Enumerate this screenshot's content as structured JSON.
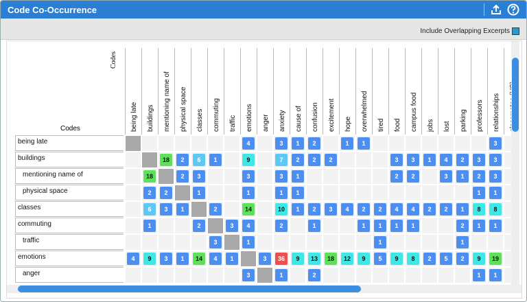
{
  "header": {
    "title": "Code Co-Occurrence"
  },
  "toolbar": {
    "overlap_label": "Include Overlapping Excerpts",
    "overlap_checked": true
  },
  "table": {
    "column_axis_label": "Codes",
    "row_axis_label": "Codes",
    "columns": [
      "being late",
      "buildings",
      "mentioning name of",
      "physical space",
      "classes",
      "commuting",
      "traffic",
      "emotions",
      "anger",
      "anxiety",
      "cause of",
      "confusion",
      "excitement",
      "hope",
      "overwhelmed",
      "tired",
      "food",
      "campus food",
      "jobs",
      "lost",
      "parking",
      "professors",
      "relationships",
      "classmates (HS)"
    ],
    "rows": [
      {
        "label": "being late",
        "child": false,
        "cells": [
          null,
          null,
          null,
          null,
          null,
          null,
          null,
          4,
          null,
          3,
          1,
          2,
          null,
          1,
          1,
          null,
          null,
          null,
          null,
          null,
          null,
          null,
          3,
          null
        ]
      },
      {
        "label": "buildings",
        "child": false,
        "cells": [
          null,
          null,
          18,
          2,
          6,
          1,
          null,
          9,
          null,
          7,
          2,
          2,
          2,
          null,
          null,
          null,
          3,
          3,
          1,
          4,
          2,
          3,
          3,
          null
        ]
      },
      {
        "label": "mentioning name of",
        "child": true,
        "cells": [
          null,
          18,
          null,
          2,
          3,
          null,
          null,
          3,
          null,
          3,
          1,
          null,
          null,
          null,
          null,
          null,
          2,
          2,
          null,
          3,
          1,
          2,
          3,
          null
        ]
      },
      {
        "label": "physical space",
        "child": true,
        "cells": [
          null,
          2,
          2,
          null,
          1,
          null,
          null,
          1,
          null,
          1,
          1,
          null,
          null,
          null,
          null,
          null,
          null,
          null,
          null,
          null,
          null,
          1,
          1,
          null
        ]
      },
      {
        "label": "classes",
        "child": false,
        "cells": [
          null,
          6,
          3,
          1,
          null,
          2,
          null,
          14,
          null,
          10,
          1,
          2,
          3,
          4,
          2,
          2,
          4,
          4,
          2,
          2,
          1,
          8,
          8,
          null
        ]
      },
      {
        "label": "commuting",
        "child": false,
        "cells": [
          null,
          1,
          null,
          null,
          2,
          null,
          3,
          4,
          null,
          2,
          null,
          1,
          null,
          null,
          1,
          1,
          1,
          1,
          null,
          null,
          2,
          1,
          1,
          null
        ]
      },
      {
        "label": "traffic",
        "child": true,
        "cells": [
          null,
          null,
          null,
          null,
          null,
          3,
          null,
          1,
          null,
          null,
          null,
          null,
          null,
          null,
          null,
          1,
          null,
          null,
          null,
          null,
          1,
          null,
          null,
          null
        ]
      },
      {
        "label": "emotions",
        "child": false,
        "cells": [
          4,
          9,
          3,
          1,
          14,
          4,
          1,
          null,
          3,
          36,
          9,
          13,
          18,
          12,
          9,
          5,
          9,
          8,
          2,
          5,
          2,
          9,
          19,
          null
        ]
      },
      {
        "label": "anger",
        "child": true,
        "cells": [
          null,
          null,
          null,
          null,
          null,
          null,
          null,
          3,
          null,
          1,
          null,
          2,
          null,
          null,
          null,
          null,
          null,
          null,
          null,
          null,
          null,
          1,
          1,
          null
        ]
      }
    ]
  }
}
